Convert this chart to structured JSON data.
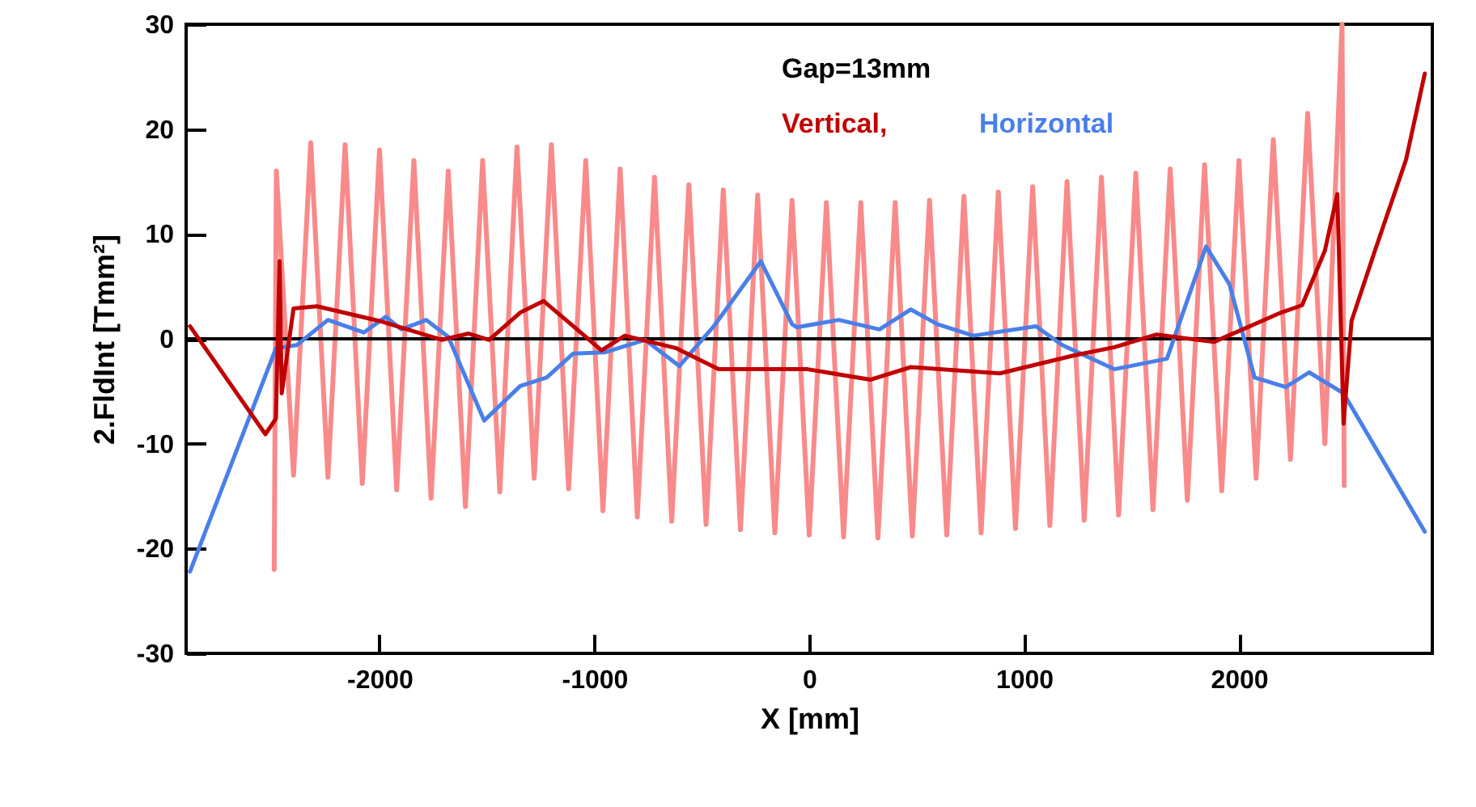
{
  "chart_data": {
    "type": "line",
    "xlabel": "X  [mm]",
    "ylabel": "2.FldInt  [Tmm²]",
    "annotations": [
      "Gap=13mm"
    ],
    "xlim": [
      -2900,
      2900
    ],
    "xticks": [
      -2000,
      -1000,
      0,
      1000,
      2000
    ],
    "ylim": [
      -30,
      30
    ],
    "yticks": [
      -30,
      -20,
      -10,
      0,
      10,
      20,
      30
    ],
    "grid": false,
    "legend": false,
    "ref_lines": [
      {
        "axis": "y",
        "value": 0,
        "color": "#000000"
      }
    ],
    "series": [
      {
        "color": "#f88a8a",
        "x": [
          -2490,
          -2480,
          -2400,
          -2320,
          -2240,
          -2160,
          -2080,
          -2000,
          -1920,
          -1840,
          -1760,
          -1680,
          -1600,
          -1520,
          -1440,
          -1360,
          -1280,
          -1200,
          -1120,
          -1040,
          -960,
          -880,
          -800,
          -720,
          -640,
          -560,
          -480,
          -400,
          -320,
          -240,
          -160,
          -80,
          0,
          80,
          160,
          240,
          320,
          400,
          480,
          560,
          640,
          720,
          800,
          880,
          960,
          1040,
          1120,
          1200,
          1280,
          1360,
          1440,
          1520,
          1600,
          1680,
          1760,
          1840,
          1920,
          2000,
          2080,
          2160,
          2240,
          2320,
          2400,
          2480,
          2490
        ],
        "values": [
          -22,
          16,
          -13,
          18.7,
          -13.2,
          18.5,
          -13.8,
          18,
          -14.4,
          17,
          -15.2,
          16,
          -16,
          17,
          -14.6,
          18.3,
          -13.3,
          18.5,
          -14.3,
          17,
          -16.4,
          16.2,
          -17,
          15.4,
          -17.4,
          14.7,
          -17.7,
          14.2,
          -18.2,
          13.7,
          -18.5,
          13.2,
          -18.7,
          13,
          -18.9,
          13,
          -19,
          13,
          -18.8,
          13.2,
          -18.7,
          13.6,
          -18.5,
          14,
          -18.1,
          14.5,
          -17.8,
          15,
          -17.3,
          15.4,
          -16.8,
          15.8,
          -16.3,
          16.2,
          -15.4,
          16.6,
          -14.5,
          17,
          -13.3,
          19,
          -11.5,
          21.5,
          -10,
          30,
          -14
        ]
      },
      {
        "name": "Horizontal",
        "color": "#4a7fe8",
        "x": [
          -2882,
          -2482,
          -2385,
          -2240,
          -2073,
          -1971,
          -1898,
          -1782,
          -1680,
          -1513,
          -1345,
          -1222,
          -1098,
          -953,
          -764,
          -604,
          -444,
          -225,
          -80,
          -58,
          138,
          327,
          473,
          596,
          764,
          1055,
          1178,
          1420,
          1665,
          1847,
          1956,
          2073,
          2218,
          2327,
          2487,
          2865
        ],
        "values": [
          -22.2,
          -0.9,
          -0.6,
          1.8,
          0.6,
          2.1,
          0.9,
          1.8,
          0.2,
          -7.8,
          -4.5,
          -3.7,
          -1.4,
          -1.3,
          -0.1,
          -2.6,
          1.2,
          7.4,
          1.4,
          1.1,
          1.8,
          0.9,
          2.8,
          1.4,
          0.3,
          1.2,
          -0.6,
          -2.9,
          -1.9,
          8.8,
          5.2,
          -3.7,
          -4.6,
          -3.2,
          -5.2,
          -18.4
        ]
      },
      {
        "name": "Vertical,",
        "color": "#c00000",
        "x": [
          -2882,
          -2531,
          -2482,
          -2465,
          -2455,
          -2400,
          -2291,
          -2000,
          -1709,
          -1585,
          -1490,
          -1345,
          -1236,
          -1098,
          -967,
          -858,
          -618,
          -422,
          -131,
          -7,
          284,
          473,
          887,
          1229,
          1420,
          1615,
          1884,
          2196,
          2294,
          2400,
          2458,
          2487,
          2524,
          2633,
          2778,
          2865
        ],
        "values": [
          1.2,
          -9.1,
          -7.6,
          7.4,
          -5.2,
          2.9,
          3.1,
          1.7,
          -0.1,
          0.5,
          -0.1,
          2.5,
          3.6,
          1.2,
          -1.1,
          0.3,
          -0.9,
          -2.9,
          -2.9,
          -2.9,
          -3.9,
          -2.7,
          -3.3,
          -1.6,
          -0.8,
          0.4,
          -0.3,
          2.5,
          3.2,
          8.4,
          13.8,
          -8.1,
          1.7,
          8.4,
          17.1,
          25.3
        ]
      }
    ]
  }
}
